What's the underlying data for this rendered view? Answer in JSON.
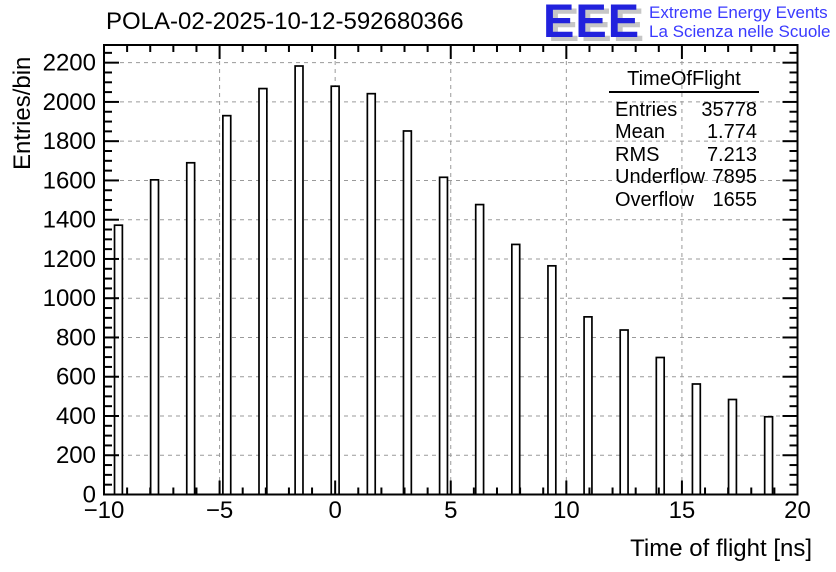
{
  "header": {
    "title": "POLA-02-2025-10-12-592680366",
    "logo": {
      "acronym": "EEE",
      "tagline_line1": "Extreme Energy Events",
      "tagline_line2": "La Scienza nelle Scuole",
      "blue": "#2121dd",
      "text_blue": "#3a3aff",
      "shadow": "#c6c6c6"
    }
  },
  "stats_box": {
    "title": "TimeOfFlight",
    "rows": [
      {
        "label": "Entries",
        "value": "35778"
      },
      {
        "label": "Mean",
        "value": "1.774"
      },
      {
        "label": "RMS",
        "value": "7.213"
      },
      {
        "label": "Underflow",
        "value": "7895"
      },
      {
        "label": "Overflow",
        "value": "1655"
      }
    ]
  },
  "colors": {
    "axis": "#000000",
    "grid": "#9a9a9a",
    "bar_fill": "#ffffff",
    "bar_stroke": "#000000",
    "background": "#ffffff",
    "text": "#000000"
  },
  "chart_data": {
    "type": "bar",
    "title": "POLA-02-2025-10-12-592680366",
    "xlabel": "Time of flight [ns]",
    "ylabel": "Entries/bin",
    "xlim": [
      -10,
      20
    ],
    "ylim": [
      0,
      2290
    ],
    "grid": true,
    "legend": "none",
    "xticks": [
      -10,
      -5,
      0,
      5,
      10,
      15,
      20
    ],
    "xtick_labels": [
      "−10",
      "−5",
      "0",
      "5",
      "10",
      "15",
      "20"
    ],
    "yticks": [
      0,
      200,
      400,
      600,
      800,
      1000,
      1200,
      1400,
      1600,
      1800,
      2000,
      2200
    ],
    "ytick_labels": [
      "0",
      "200",
      "400",
      "600",
      "800",
      "1000",
      "1200",
      "1400",
      "1600",
      "1800",
      "2000",
      "2200"
    ],
    "x_minor_step": 1,
    "y_minor_step": 50,
    "bar_width_ns": 0.34,
    "x": [
      -9.375,
      -7.8125,
      -6.25,
      -4.6875,
      -3.125,
      -1.5625,
      0,
      1.5625,
      3.125,
      4.6875,
      6.25,
      7.8125,
      9.375,
      10.9375,
      12.5,
      14.0625,
      15.625,
      17.1875,
      18.75
    ],
    "values": [
      1372,
      1603,
      1690,
      1930,
      2068,
      2183,
      2080,
      2042,
      1852,
      1616,
      1477,
      1274,
      1165,
      905,
      838,
      698,
      563,
      484,
      396
    ],
    "stats": {
      "entries": 35778,
      "mean": 1.774,
      "rms": 7.213,
      "underflow": 7895,
      "overflow": 1655
    }
  }
}
